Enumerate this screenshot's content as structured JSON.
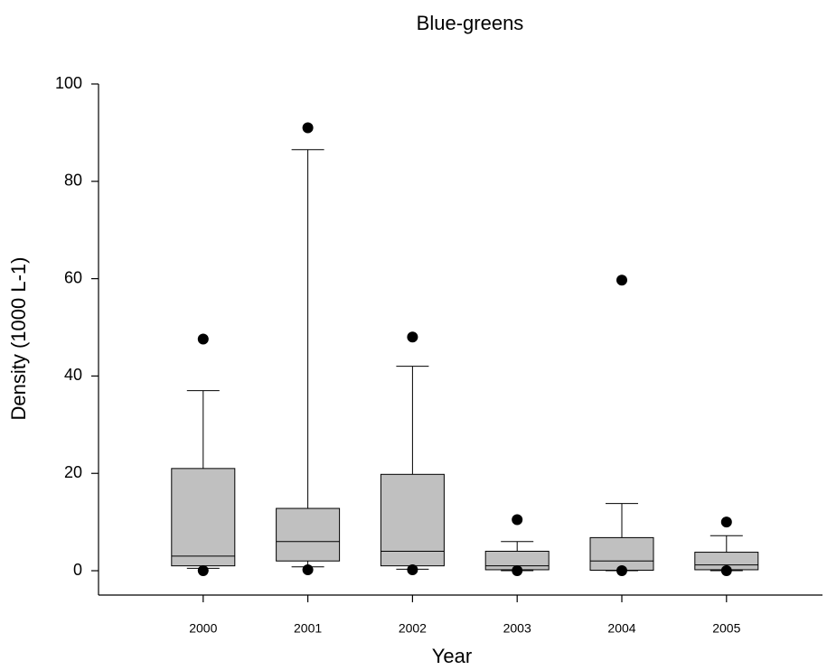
{
  "chart_data": {
    "type": "box",
    "title": "Blue-greens",
    "x_label": "Year",
    "y_label": "Density (1000 L-1)",
    "categories": [
      "2000",
      "2001",
      "2002",
      "2003",
      "2004",
      "2005"
    ],
    "whisker_low": [
      0.5,
      0.8,
      0.3,
      0,
      0,
      0
    ],
    "q1": [
      1,
      2,
      1,
      0.2,
      0.1,
      0.2
    ],
    "median": [
      3,
      6,
      4,
      1,
      2,
      1.2
    ],
    "q3": [
      21,
      12.8,
      19.8,
      4,
      6.8,
      3.8
    ],
    "whisker_high": [
      37,
      86.5,
      42,
      6,
      13.8,
      7.2
    ],
    "outliers": [
      [
        47.6,
        0
      ],
      [
        91,
        0.2
      ],
      [
        48,
        0.2
      ],
      [
        10.5,
        0
      ],
      [
        59.7,
        0
      ],
      [
        10,
        0
      ]
    ],
    "color": "#c0c0c0",
    "ylim": [
      -5,
      100
    ],
    "yticks": [
      0,
      20,
      40,
      60,
      80,
      100
    ]
  }
}
